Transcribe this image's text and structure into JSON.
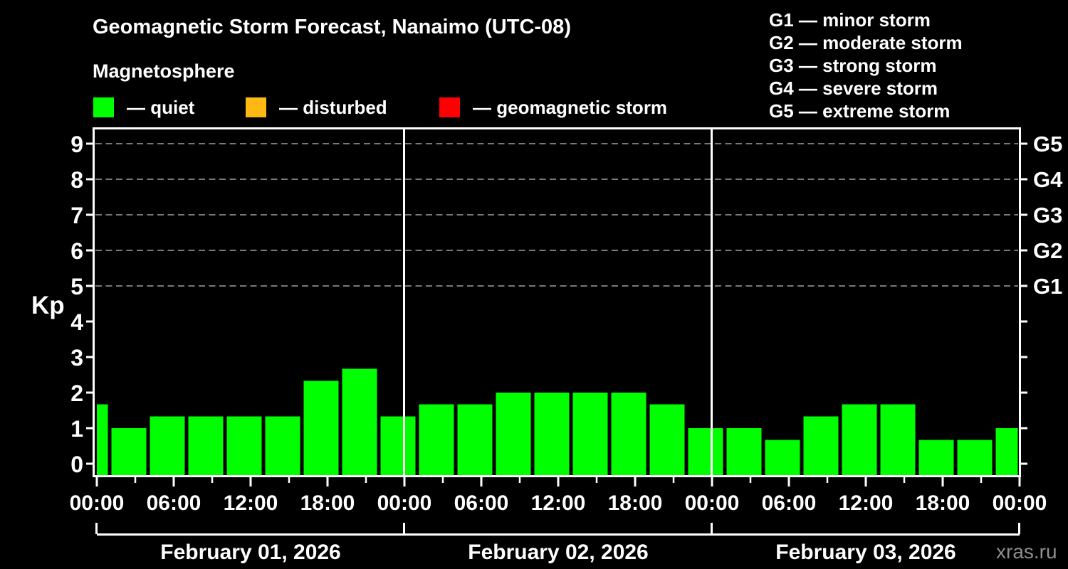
{
  "header": {
    "title": "Geomagnetic Storm Forecast, Nanaimo (UTC-08)",
    "subtitle": "Magnetosphere",
    "legend": [
      {
        "name": "quiet",
        "label": "— quiet",
        "color": "#00ff00"
      },
      {
        "name": "disturbed",
        "label": "— disturbed",
        "color": "#fdb813"
      },
      {
        "name": "geomagnetic-storm",
        "label": "— geomagnetic storm",
        "color": "#ff0000"
      }
    ],
    "storm_scale": [
      {
        "label": "G1 — minor storm"
      },
      {
        "label": "G2 — moderate storm"
      },
      {
        "label": "G3 — strong storm"
      },
      {
        "label": "G4 — severe storm"
      },
      {
        "label": "G5 — extreme storm"
      }
    ]
  },
  "watermark": "xras.ru",
  "chart_data": {
    "type": "bar",
    "title": "Geomagnetic Storm Forecast, Nanaimo (UTC-08)",
    "ylabel": "Kp",
    "ylim": [
      0,
      9
    ],
    "yticks": [
      0,
      1,
      2,
      3,
      4,
      5,
      6,
      7,
      8,
      9
    ],
    "grid_levels": [
      5,
      6,
      7,
      8,
      9
    ],
    "grid_color": "#a0a0a0",
    "axis_color": "#ffffff",
    "bar_color": "#00ff00",
    "legend_position": "top-left",
    "right_axis_labels": [
      {
        "kp": 5,
        "label": "G1"
      },
      {
        "kp": 6,
        "label": "G2"
      },
      {
        "kp": 7,
        "label": "G3"
      },
      {
        "kp": 8,
        "label": "G4"
      },
      {
        "kp": 9,
        "label": "G5"
      }
    ],
    "x_major_ticks_hours": [
      0,
      6,
      12,
      18,
      24,
      30,
      36,
      42,
      48,
      54,
      60,
      66,
      72
    ],
    "x_tick_labels": [
      "00:00",
      "06:00",
      "12:00",
      "18:00",
      "00:00",
      "06:00",
      "12:00",
      "18:00",
      "00:00",
      "06:00",
      "12:00",
      "18:00",
      "00:00"
    ],
    "x_minor_ticks_hours": [
      3,
      9,
      15,
      21,
      27,
      33,
      39,
      45,
      51,
      57,
      63,
      69
    ],
    "day_divider_hours": [
      24,
      48
    ],
    "days": [
      {
        "label": "February 01, 2026",
        "start_hour": 0,
        "end_hour": 24
      },
      {
        "label": "February 02, 2026",
        "start_hour": 24,
        "end_hour": 48
      },
      {
        "label": "February 03, 2026",
        "start_hour": 48,
        "end_hour": 72
      }
    ],
    "bars": [
      {
        "start_hour": 0,
        "end_hour": 1,
        "kp": 1.67
      },
      {
        "start_hour": 1,
        "end_hour": 4,
        "kp": 1.0
      },
      {
        "start_hour": 4,
        "end_hour": 7,
        "kp": 1.33
      },
      {
        "start_hour": 7,
        "end_hour": 10,
        "kp": 1.33
      },
      {
        "start_hour": 10,
        "end_hour": 13,
        "kp": 1.33
      },
      {
        "start_hour": 13,
        "end_hour": 16,
        "kp": 1.33
      },
      {
        "start_hour": 16,
        "end_hour": 19,
        "kp": 2.33
      },
      {
        "start_hour": 19,
        "end_hour": 22,
        "kp": 2.67
      },
      {
        "start_hour": 22,
        "end_hour": 25,
        "kp": 1.33
      },
      {
        "start_hour": 25,
        "end_hour": 28,
        "kp": 1.67
      },
      {
        "start_hour": 28,
        "end_hour": 31,
        "kp": 1.67
      },
      {
        "start_hour": 31,
        "end_hour": 34,
        "kp": 2.0
      },
      {
        "start_hour": 34,
        "end_hour": 37,
        "kp": 2.0
      },
      {
        "start_hour": 37,
        "end_hour": 40,
        "kp": 2.0
      },
      {
        "start_hour": 40,
        "end_hour": 43,
        "kp": 2.0
      },
      {
        "start_hour": 43,
        "end_hour": 46,
        "kp": 1.67
      },
      {
        "start_hour": 46,
        "end_hour": 49,
        "kp": 1.0
      },
      {
        "start_hour": 49,
        "end_hour": 52,
        "kp": 1.0
      },
      {
        "start_hour": 52,
        "end_hour": 55,
        "kp": 0.67
      },
      {
        "start_hour": 55,
        "end_hour": 58,
        "kp": 1.33
      },
      {
        "start_hour": 58,
        "end_hour": 61,
        "kp": 1.67
      },
      {
        "start_hour": 61,
        "end_hour": 64,
        "kp": 1.67
      },
      {
        "start_hour": 64,
        "end_hour": 67,
        "kp": 0.67
      },
      {
        "start_hour": 67,
        "end_hour": 70,
        "kp": 0.67
      },
      {
        "start_hour": 70,
        "end_hour": 72,
        "kp": 1.0
      }
    ]
  }
}
